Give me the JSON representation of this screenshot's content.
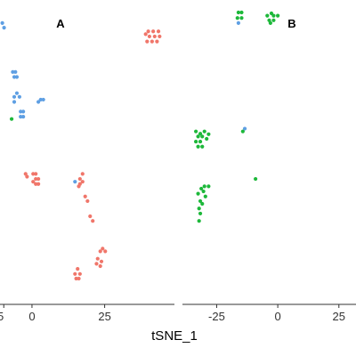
{
  "chart_data": {
    "type": "scatter",
    "xlabel": "tSNE_1",
    "colors": {
      "red": "#F0766A",
      "blue": "#5E9FE3",
      "green": "#1DB83A"
    },
    "panels": [
      {
        "title": "A",
        "xlim": [
          -11,
          49
        ],
        "ylim": [
          -34,
          32
        ],
        "xticks": [
          0,
          25
        ],
        "xtick_labels": [
          "0",
          "25"
        ],
        "xticks_left_clipped": [
          {
            "value": -9.7,
            "label": "5"
          }
        ],
        "points": [
          {
            "x": -10.2,
            "y": 27.0,
            "c": "blue"
          },
          {
            "x": -9.6,
            "y": 26.0,
            "c": "blue"
          },
          {
            "x": -6.6,
            "y": 16.4,
            "c": "blue"
          },
          {
            "x": -5.7,
            "y": 16.4,
            "c": "blue"
          },
          {
            "x": -6.1,
            "y": 15.3,
            "c": "blue"
          },
          {
            "x": -5.2,
            "y": 15.3,
            "c": "blue"
          },
          {
            "x": -6.1,
            "y": 11.0,
            "c": "blue"
          },
          {
            "x": -5.2,
            "y": 11.8,
            "c": "blue"
          },
          {
            "x": -4.3,
            "y": 11.0,
            "c": "blue"
          },
          {
            "x": -6.1,
            "y": 9.9,
            "c": "blue"
          },
          {
            "x": -3.9,
            "y": 7.8,
            "c": "blue"
          },
          {
            "x": -3.0,
            "y": 7.8,
            "c": "blue"
          },
          {
            "x": -3.9,
            "y": 6.7,
            "c": "blue"
          },
          {
            "x": -3.0,
            "y": 6.7,
            "c": "blue"
          },
          {
            "x": 2.2,
            "y": 9.9,
            "c": "blue"
          },
          {
            "x": 3.0,
            "y": 10.4,
            "c": "blue"
          },
          {
            "x": 3.9,
            "y": 10.4,
            "c": "blue"
          },
          {
            "x": 14.8,
            "y": -7.4,
            "c": "blue"
          },
          {
            "x": -7.0,
            "y": 6.2,
            "c": "green"
          },
          {
            "x": 39.1,
            "y": 24.6,
            "c": "red"
          },
          {
            "x": 40.0,
            "y": 25.2,
            "c": "red"
          },
          {
            "x": 41.7,
            "y": 25.2,
            "c": "red"
          },
          {
            "x": 43.5,
            "y": 25.2,
            "c": "red"
          },
          {
            "x": 40.4,
            "y": 24.1,
            "c": "red"
          },
          {
            "x": 42.2,
            "y": 24.1,
            "c": "red"
          },
          {
            "x": 43.9,
            "y": 24.1,
            "c": "red"
          },
          {
            "x": 39.6,
            "y": 23.0,
            "c": "red"
          },
          {
            "x": 41.3,
            "y": 23.0,
            "c": "red"
          },
          {
            "x": 43.0,
            "y": 23.0,
            "c": "red"
          },
          {
            "x": -2.2,
            "y": -5.7,
            "c": "red"
          },
          {
            "x": -1.7,
            "y": -6.3,
            "c": "red"
          },
          {
            "x": 0.4,
            "y": -5.7,
            "c": "red"
          },
          {
            "x": 1.3,
            "y": -5.7,
            "c": "red"
          },
          {
            "x": 1.3,
            "y": -6.8,
            "c": "red"
          },
          {
            "x": 2.2,
            "y": -6.8,
            "c": "red"
          },
          {
            "x": 0.4,
            "y": -7.4,
            "c": "red"
          },
          {
            "x": 1.3,
            "y": -7.9,
            "c": "red"
          },
          {
            "x": 2.2,
            "y": -7.9,
            "c": "red"
          },
          {
            "x": 17.4,
            "y": -5.7,
            "c": "red"
          },
          {
            "x": 16.5,
            "y": -6.8,
            "c": "red"
          },
          {
            "x": 17.4,
            "y": -7.4,
            "c": "red"
          },
          {
            "x": 16.5,
            "y": -7.9,
            "c": "red"
          },
          {
            "x": 16.1,
            "y": -8.4,
            "c": "red"
          },
          {
            "x": 18.3,
            "y": -10.6,
            "c": "red"
          },
          {
            "x": 19.1,
            "y": -11.6,
            "c": "red"
          },
          {
            "x": 20.0,
            "y": -14.9,
            "c": "red"
          },
          {
            "x": 20.9,
            "y": -15.9,
            "c": "red"
          },
          {
            "x": 24.3,
            "y": -21.9,
            "c": "red"
          },
          {
            "x": 23.5,
            "y": -22.5,
            "c": "red"
          },
          {
            "x": 25.2,
            "y": -22.5,
            "c": "red"
          },
          {
            "x": 22.6,
            "y": -24.1,
            "c": "red"
          },
          {
            "x": 23.9,
            "y": -24.7,
            "c": "red"
          },
          {
            "x": 22.2,
            "y": -25.2,
            "c": "red"
          },
          {
            "x": 23.5,
            "y": -25.7,
            "c": "red"
          },
          {
            "x": 15.7,
            "y": -26.3,
            "c": "red"
          },
          {
            "x": 14.8,
            "y": -27.4,
            "c": "red"
          },
          {
            "x": 16.5,
            "y": -27.4,
            "c": "red"
          },
          {
            "x": 15.2,
            "y": -28.4,
            "c": "red"
          },
          {
            "x": 16.1,
            "y": -28.4,
            "c": "red"
          }
        ]
      },
      {
        "title": "B",
        "xlim": [
          -39,
          32
        ],
        "ylim": [
          -34,
          32
        ],
        "xticks": [
          -25,
          0,
          25
        ],
        "xtick_labels": [
          "-25",
          "0",
          "25"
        ],
        "points": [
          {
            "x": -16.1,
            "y": 29.3,
            "c": "green"
          },
          {
            "x": -14.8,
            "y": 29.3,
            "c": "green"
          },
          {
            "x": -16.5,
            "y": 28.1,
            "c": "green"
          },
          {
            "x": -14.8,
            "y": 28.1,
            "c": "green"
          },
          {
            "x": -16.1,
            "y": 27.0,
            "c": "blue"
          },
          {
            "x": -4.3,
            "y": 28.6,
            "c": "green"
          },
          {
            "x": -2.6,
            "y": 29.1,
            "c": "green"
          },
          {
            "x": -1.7,
            "y": 28.6,
            "c": "green"
          },
          {
            "x": 0.0,
            "y": 28.6,
            "c": "green"
          },
          {
            "x": -3.5,
            "y": 27.6,
            "c": "green"
          },
          {
            "x": -1.7,
            "y": 27.6,
            "c": "green"
          },
          {
            "x": -3.0,
            "y": 27.0,
            "c": "green"
          },
          {
            "x": -13.5,
            "y": 4.1,
            "c": "blue"
          },
          {
            "x": -14.3,
            "y": 3.5,
            "c": "green"
          },
          {
            "x": -33.5,
            "y": 3.5,
            "c": "green"
          },
          {
            "x": -31.7,
            "y": 3.0,
            "c": "green"
          },
          {
            "x": -30.0,
            "y": 3.5,
            "c": "green"
          },
          {
            "x": -32.6,
            "y": 2.4,
            "c": "green"
          },
          {
            "x": -30.9,
            "y": 2.4,
            "c": "green"
          },
          {
            "x": -28.3,
            "y": 2.9,
            "c": "green"
          },
          {
            "x": -33.5,
            "y": 1.3,
            "c": "green"
          },
          {
            "x": -31.7,
            "y": 1.3,
            "c": "green"
          },
          {
            "x": -29.1,
            "y": 1.9,
            "c": "green"
          },
          {
            "x": -32.6,
            "y": 0.2,
            "c": "green"
          },
          {
            "x": -30.9,
            "y": 0.2,
            "c": "green"
          },
          {
            "x": -9.1,
            "y": -6.8,
            "c": "green"
          },
          {
            "x": -30.0,
            "y": -8.4,
            "c": "green"
          },
          {
            "x": -31.3,
            "y": -8.9,
            "c": "green"
          },
          {
            "x": -28.3,
            "y": -8.4,
            "c": "green"
          },
          {
            "x": -30.4,
            "y": -9.5,
            "c": "green"
          },
          {
            "x": -32.6,
            "y": -10.0,
            "c": "green"
          },
          {
            "x": -29.6,
            "y": -10.6,
            "c": "green"
          },
          {
            "x": -31.7,
            "y": -11.6,
            "c": "green"
          },
          {
            "x": -30.9,
            "y": -12.2,
            "c": "green"
          },
          {
            "x": -32.2,
            "y": -13.2,
            "c": "green"
          },
          {
            "x": -31.7,
            "y": -14.3,
            "c": "green"
          },
          {
            "x": -32.2,
            "y": -15.9,
            "c": "green"
          }
        ]
      }
    ]
  }
}
